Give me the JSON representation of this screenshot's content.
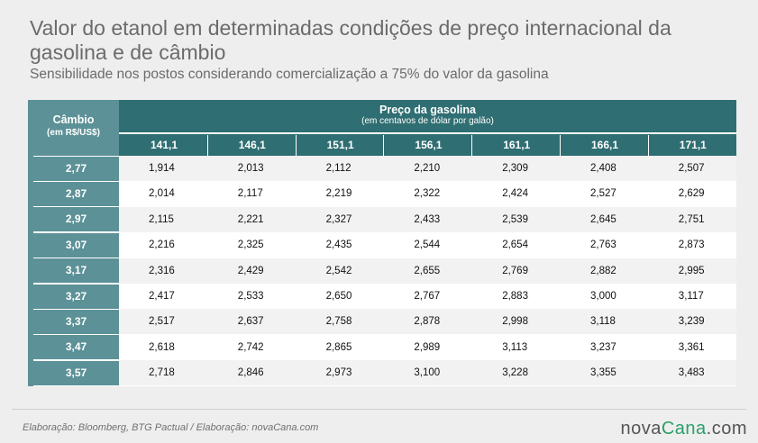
{
  "title": "Valor do etanol em determinadas condições de preço internacional da gasolina e de câmbio",
  "subtitle": "Sensibilidade nos postos considerando comercialização a 75% do valor da gasolina",
  "table": {
    "row_header_title": "Câmbio",
    "row_header_unit": "(em R$/US$)",
    "col_header_title": "Preço da gasolina",
    "col_header_unit": "(em centavos de dólar por galão)"
  },
  "footer": {
    "source": "Elaboração: Bloomberg, BTG Pactual / Elaboração: novaCana.com",
    "logo_part1": "nova",
    "logo_part2": "Cana",
    "logo_part3": ".com"
  },
  "colors": {
    "header_dark": "#2f6e72",
    "header_light": "#5c9197",
    "logo_accent": "#2a9f6a"
  },
  "chart_data": {
    "type": "table",
    "columns": [
      "141,1",
      "146,1",
      "151,1",
      "156,1",
      "161,1",
      "166,1",
      "171,1"
    ],
    "rows": [
      "2,77",
      "2,87",
      "2,97",
      "3,07",
      "3,17",
      "3,27",
      "3,37",
      "3,47",
      "3,57"
    ],
    "values": [
      [
        "1,914",
        "2,013",
        "2,112",
        "2,210",
        "2,309",
        "2,408",
        "2,507"
      ],
      [
        "2,014",
        "2,117",
        "2,219",
        "2,322",
        "2,424",
        "2,527",
        "2,629"
      ],
      [
        "2,115",
        "2,221",
        "2,327",
        "2,433",
        "2,539",
        "2,645",
        "2,751"
      ],
      [
        "2,216",
        "2,325",
        "2,435",
        "2,544",
        "2,654",
        "2,763",
        "2,873"
      ],
      [
        "2,316",
        "2,429",
        "2,542",
        "2,655",
        "2,769",
        "2,882",
        "2,995"
      ],
      [
        "2,417",
        "2,533",
        "2,650",
        "2,767",
        "2,883",
        "3,000",
        "3,117"
      ],
      [
        "2,517",
        "2,637",
        "2,758",
        "2,878",
        "2,998",
        "3,118",
        "3,239"
      ],
      [
        "2,618",
        "2,742",
        "2,865",
        "2,989",
        "3,113",
        "3,237",
        "3,361"
      ],
      [
        "2,718",
        "2,846",
        "2,973",
        "3,100",
        "3,228",
        "3,355",
        "3,483"
      ]
    ]
  }
}
